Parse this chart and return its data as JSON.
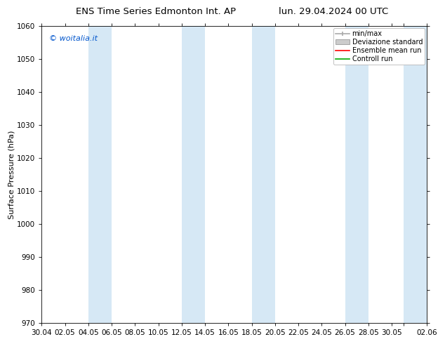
{
  "title_left": "ENS Time Series Edmonton Int. AP",
  "title_right": "lun. 29.04.2024 00 UTC",
  "ylabel": "Surface Pressure (hPa)",
  "ylim": [
    970,
    1060
  ],
  "yticks": [
    970,
    980,
    990,
    1000,
    1010,
    1020,
    1030,
    1040,
    1050,
    1060
  ],
  "xtick_labels": [
    "30.04",
    "02.05",
    "04.05",
    "06.05",
    "08.05",
    "10.05",
    "12.05",
    "14.05",
    "16.05",
    "18.05",
    "20.05",
    "22.05",
    "24.05",
    "26.05",
    "28.05",
    "30.05",
    "",
    "02.06"
  ],
  "xtick_positions": [
    0,
    2,
    4,
    6,
    8,
    10,
    12,
    14,
    16,
    18,
    20,
    22,
    24,
    26,
    28,
    30,
    31,
    33
  ],
  "xlim": [
    0,
    33
  ],
  "watermark": "© woitalia.it",
  "legend_items": [
    "min/max",
    "Deviazione standard",
    "Ensemble mean run",
    "Controll run"
  ],
  "band_color": "#d6e8f5",
  "band_alpha": 1.0,
  "band_starts": [
    4,
    12,
    18,
    26,
    31
  ],
  "band_ends": [
    6,
    14,
    20,
    28,
    33
  ],
  "background_color": "#ffffff",
  "title_fontsize": 9.5,
  "ylabel_fontsize": 8,
  "tick_fontsize": 7.5,
  "legend_fontsize": 7,
  "watermark_color": "#0055cc",
  "watermark_fontsize": 8,
  "minmax_color": "#aaaaaa",
  "dev_facecolor": "#cccccc",
  "dev_edgecolor": "#999999",
  "ensemble_color": "#ff0000",
  "control_color": "#00aa00"
}
